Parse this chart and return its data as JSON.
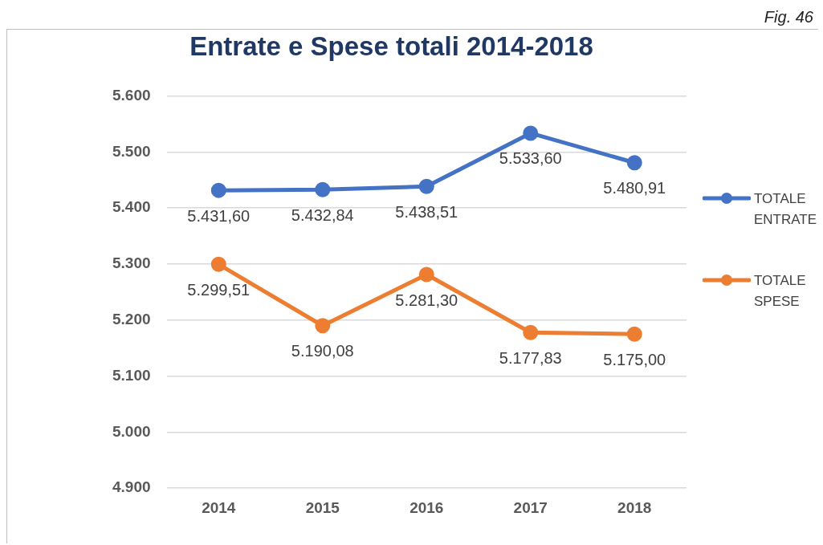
{
  "chart_data": {
    "type": "line",
    "title": "Entrate e Spese totali 2014-2018",
    "annotations": [
      "Fig. 46"
    ],
    "categories": [
      "2014",
      "2015",
      "2016",
      "2017",
      "2018"
    ],
    "series": [
      {
        "name": "TOTALE ENTRATE",
        "color": "#4472c4",
        "values": [
          5431.6,
          5432.84,
          5438.51,
          5533.6,
          5480.91
        ],
        "value_labels": [
          "5.431,60",
          "5.432,84",
          "5.438,51",
          "5.533,60",
          "5.480,91"
        ]
      },
      {
        "name": "TOTALE SPESE",
        "color": "#ed7d31",
        "values": [
          5299.51,
          5190.08,
          5281.3,
          5177.83,
          5175.0
        ],
        "value_labels": [
          "5.299,51",
          "5.190,08",
          "5.281,30",
          "5.177,83",
          "5.175,00"
        ]
      }
    ],
    "ylim": [
      4900,
      5600
    ],
    "yticks": [
      {
        "value": 4900,
        "label": "4.900"
      },
      {
        "value": 5000,
        "label": "5.000"
      },
      {
        "value": 5100,
        "label": "5.100"
      },
      {
        "value": 5200,
        "label": "5.200"
      },
      {
        "value": 5300,
        "label": "5.300"
      },
      {
        "value": 5400,
        "label": "5.400"
      },
      {
        "value": 5500,
        "label": "5.500"
      },
      {
        "value": 5600,
        "label": "5.600"
      }
    ],
    "grid": "y",
    "legend": "right",
    "marker": "circle",
    "line_style": "solid"
  }
}
